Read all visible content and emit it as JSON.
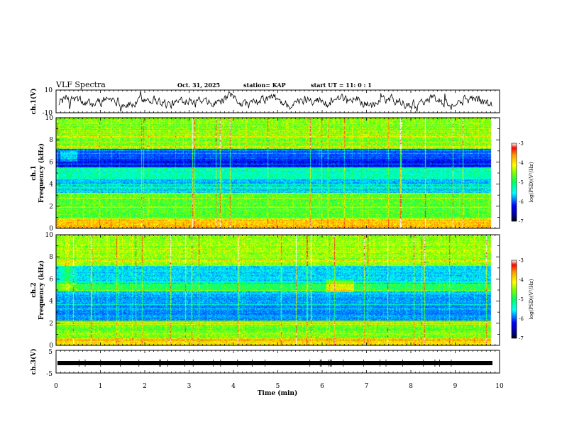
{
  "header": {
    "title": "VLF Spectra",
    "date": "Oct. 31, 2025",
    "station": "station= KAP",
    "start": "start  UT =  11: 0  : 1"
  },
  "colors": {
    "frame": "#000000",
    "trace": "#000000",
    "colormap": [
      "#000080",
      "#0000ff",
      "#00bfff",
      "#00ffff",
      "#00ff60",
      "#7fff00",
      "#ffff00",
      "#ff9900",
      "#ff0000",
      "#ffffff"
    ]
  },
  "chart_data": [
    {
      "id": "ch1-waveform",
      "type": "line",
      "ylabel": "ch.1(V)",
      "ylim": [
        -10,
        10
      ],
      "yticks": [
        "10",
        "-10"
      ],
      "xlim": [
        0,
        10
      ]
    },
    {
      "id": "ch1-spectrogram",
      "type": "heatmap",
      "ylabel": "ch.1",
      "ylabel2": "Frequency (kHz)",
      "ylim": [
        0,
        10
      ],
      "yticks": [
        "0",
        "2",
        "4",
        "6",
        "8",
        "10"
      ],
      "xlim": [
        0,
        10
      ],
      "colorbar": {
        "label": "log(PSD)(V²/Hz)",
        "range": [
          -7,
          -3
        ],
        "ticks": [
          "-3",
          "-4",
          "-5",
          "-6",
          "-7"
        ]
      }
    },
    {
      "id": "ch2-spectrogram",
      "type": "heatmap",
      "ylabel": "ch.2",
      "ylabel2": "Frequency (kHz)",
      "ylim": [
        0,
        10
      ],
      "yticks": [
        "0",
        "2",
        "4",
        "6",
        "8",
        "10"
      ],
      "xlim": [
        0,
        10
      ],
      "colorbar": {
        "label": "log(PSD)(V²/Hz)",
        "range": [
          -7,
          -3
        ],
        "ticks": [
          "-3",
          "-4",
          "-5",
          "-6",
          "-7"
        ]
      }
    },
    {
      "id": "ch3-waveform",
      "type": "line",
      "ylabel": "ch.3(V)",
      "ylim": [
        -5,
        5
      ],
      "yticks": [
        "5",
        "-5"
      ],
      "value": 0,
      "xlim": [
        0,
        10
      ],
      "xlabel": "Time (min)",
      "xticks": [
        "0",
        "1",
        "2",
        "3",
        "4",
        "5",
        "6",
        "7",
        "8",
        "9",
        "10"
      ]
    }
  ]
}
